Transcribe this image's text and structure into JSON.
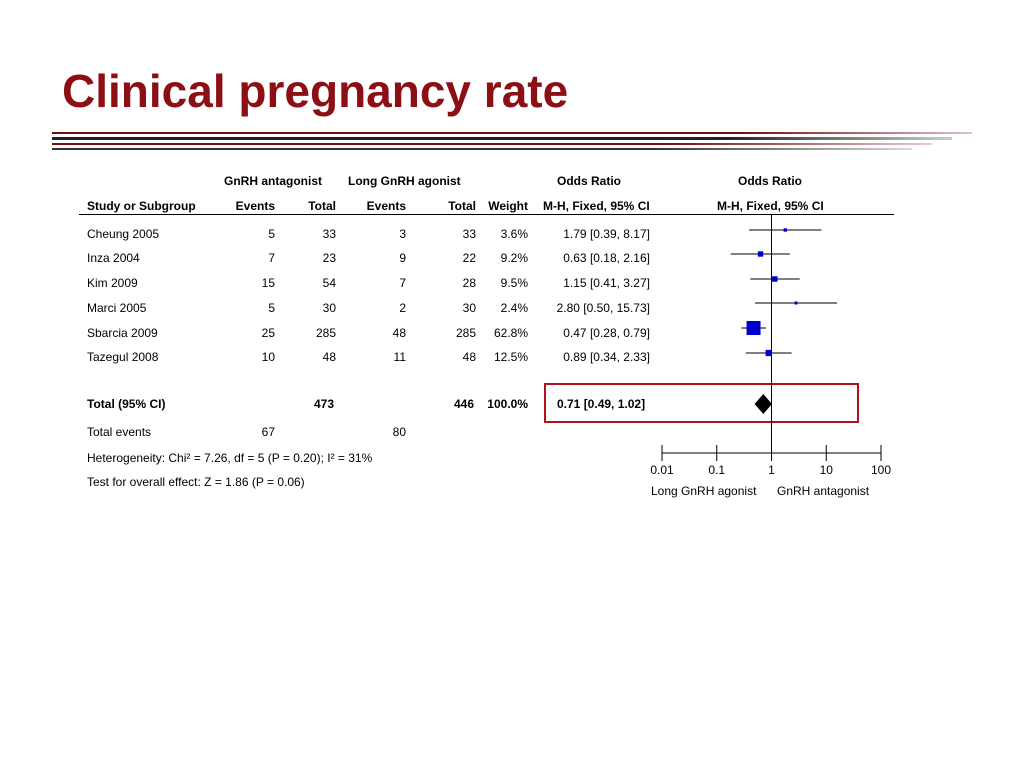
{
  "slide": {
    "title": "Clinical pregnancy rate",
    "accent_color": "#8b0f14"
  },
  "table": {
    "group_headers": {
      "experimental": "GnRH antagonist",
      "control": "Long GnRH agonist",
      "or_text": "Odds Ratio",
      "or_plot": "Odds Ratio"
    },
    "column_headers": {
      "study": "Study or Subgroup",
      "exp_events": "Events",
      "exp_total": "Total",
      "ctl_events": "Events",
      "ctl_total": "Total",
      "weight": "Weight",
      "or_method": "M-H, Fixed, 95% CI",
      "plot_method": "M-H, Fixed, 95% CI"
    },
    "studies": [
      {
        "name": "Cheung 2005",
        "exp_events": "5",
        "exp_total": "33",
        "ctl_events": "3",
        "ctl_total": "33",
        "weight": "3.6%",
        "ci_text": "1.79 [0.39, 8.17]"
      },
      {
        "name": "Inza 2004",
        "exp_events": "7",
        "exp_total": "23",
        "ctl_events": "9",
        "ctl_total": "22",
        "weight": "9.2%",
        "ci_text": "0.63 [0.18, 2.16]"
      },
      {
        "name": "Kim 2009",
        "exp_events": "15",
        "exp_total": "54",
        "ctl_events": "7",
        "ctl_total": "28",
        "weight": "9.5%",
        "ci_text": "1.15 [0.41, 3.27]"
      },
      {
        "name": "Marci 2005",
        "exp_events": "5",
        "exp_total": "30",
        "ctl_events": "2",
        "ctl_total": "30",
        "weight": "2.4%",
        "ci_text": "2.80 [0.50, 15.73]"
      },
      {
        "name": "Sbarcia 2009",
        "exp_events": "25",
        "exp_total": "285",
        "ctl_events": "48",
        "ctl_total": "285",
        "weight": "62.8%",
        "ci_text": "0.47 [0.28, 0.79]"
      },
      {
        "name": "Tazegul 2008",
        "exp_events": "10",
        "exp_total": "48",
        "ctl_events": "11",
        "ctl_total": "48",
        "weight": "12.5%",
        "ci_text": "0.89 [0.34, 2.33]"
      }
    ],
    "total": {
      "label": "Total (95% CI)",
      "exp_total": "473",
      "ctl_total": "446",
      "weight": "100.0%",
      "ci_text": "0.71 [0.49, 1.02]"
    },
    "total_events": {
      "label": "Total events",
      "exp": "67",
      "ctl": "80"
    },
    "heterogeneity": "Heterogeneity: Chi² = 7.26, df = 5 (P = 0.20); I² = 31%",
    "overall_effect": "Test for overall effect: Z = 1.86 (P = 0.06)"
  },
  "chart_data": {
    "type": "forest",
    "scale": "log",
    "xlim": [
      0.01,
      100
    ],
    "ticks": [
      "0.01",
      "0.1",
      "1",
      "10",
      "100"
    ],
    "tick_values": [
      0.01,
      0.1,
      1,
      10,
      100
    ],
    "reference_line": 1,
    "xlabel_left": "Long GnRH agonist",
    "xlabel_right": "GnRH antagonist",
    "marker_color": "#0000cc",
    "highlight_color": "#b0121b",
    "series": [
      {
        "study": "Cheung 2005",
        "or": 1.79,
        "lo": 0.39,
        "hi": 8.17,
        "weight": 3.6
      },
      {
        "study": "Inza 2004",
        "or": 0.63,
        "lo": 0.18,
        "hi": 2.16,
        "weight": 9.2
      },
      {
        "study": "Kim 2009",
        "or": 1.15,
        "lo": 0.41,
        "hi": 3.27,
        "weight": 9.5
      },
      {
        "study": "Marci 2005",
        "or": 2.8,
        "lo": 0.5,
        "hi": 15.73,
        "weight": 2.4
      },
      {
        "study": "Sbarcia 2009",
        "or": 0.47,
        "lo": 0.28,
        "hi": 0.79,
        "weight": 62.8
      },
      {
        "study": "Tazegul 2008",
        "or": 0.89,
        "lo": 0.34,
        "hi": 2.33,
        "weight": 12.5
      }
    ],
    "pooled": {
      "or": 0.71,
      "lo": 0.49,
      "hi": 1.02
    }
  }
}
